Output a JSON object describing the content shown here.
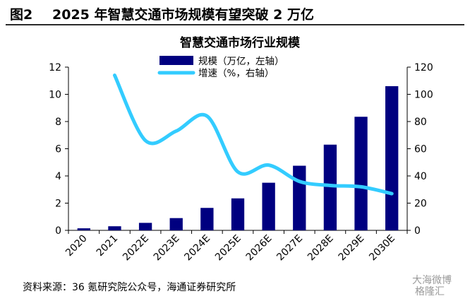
{
  "figure": {
    "number": "图2",
    "title": "2025 年智慧交通市场规模有望突破 2 万亿"
  },
  "source": "资料来源：36 氪研究院公众号，海通证券研究所",
  "watermark": {
    "line1": "大海微博",
    "line2": "格隆汇"
  },
  "chart_data": {
    "type": "bar",
    "title": "智慧交通市场行业规模",
    "categories": [
      "2020",
      "2021",
      "2022E",
      "2023E",
      "2024E",
      "2025E",
      "2026E",
      "2027E",
      "2028E",
      "2029E",
      "2030E"
    ],
    "series": [
      {
        "name": "规模（万亿，左轴）",
        "type": "bar",
        "axis": "left",
        "color": "#000080",
        "values": [
          0.15,
          0.3,
          0.55,
          0.9,
          1.65,
          2.35,
          3.5,
          4.75,
          6.3,
          8.35,
          10.6
        ]
      },
      {
        "name": "增速（%，右轴）",
        "type": "line",
        "axis": "right",
        "color": "#33ccff",
        "values": [
          null,
          114,
          66,
          73,
          84,
          43,
          48,
          36,
          33,
          32,
          27
        ]
      }
    ],
    "y_left": {
      "min": 0,
      "max": 12,
      "ticks": [
        "0",
        "2",
        "4",
        "6",
        "8",
        "10",
        "12"
      ]
    },
    "y_right": {
      "min": 0,
      "max": 120,
      "ticks": [
        "0",
        "20",
        "40",
        "60",
        "80",
        "100",
        "120"
      ]
    },
    "legend_position": "top-center",
    "grid": false
  }
}
